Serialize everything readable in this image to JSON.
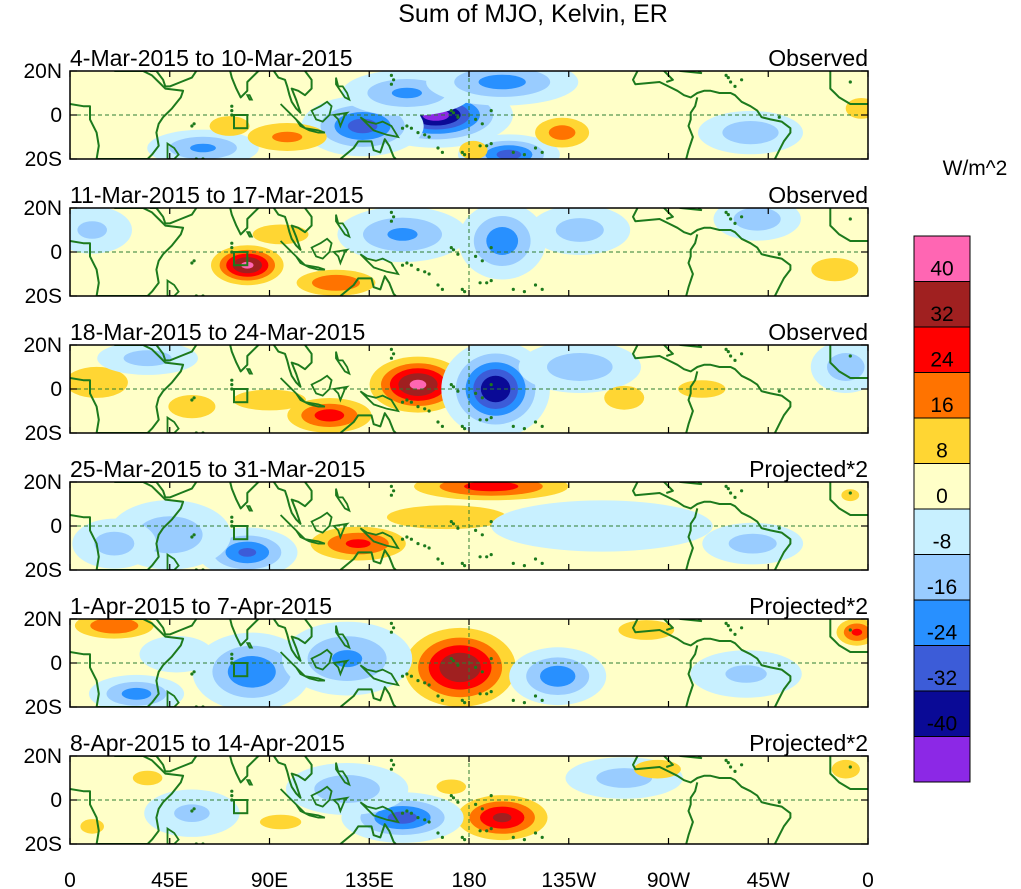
{
  "chart_data": {
    "type": "heatmap",
    "title": "Sum of MJO, Kelvin, ER",
    "units": "W/m^2",
    "x_ticks": [
      "0",
      "45E",
      "90E",
      "135E",
      "180",
      "135W",
      "90W",
      "45W",
      "0"
    ],
    "y_ticks": [
      "20N",
      "0",
      "20S"
    ],
    "colorbar": {
      "labels": [
        "40",
        "32",
        "24",
        "16",
        "8",
        "0",
        "-8",
        "-16",
        "-24",
        "-32",
        "-40"
      ],
      "colors": [
        "#ff66b3",
        "#a02020",
        "#ff0000",
        "#ff7300",
        "#ffd633",
        "#ffffc8",
        "#c8f0ff",
        "#99ccff",
        "#2890ff",
        "#3c5cd8",
        "#0a0a96",
        "#8c28e6"
      ]
    },
    "panels": [
      {
        "period": "4-Mar-2015 to 10-Mar-2015",
        "type_label": "Observed",
        "anomalies": [
          {
            "lon": 165,
            "lat": 0,
            "sx": 14,
            "sy": 6,
            "v": -44
          },
          {
            "lon": 132,
            "lat": -5,
            "sx": 12,
            "sy": 6,
            "v": -28
          },
          {
            "lon": 152,
            "lat": 10,
            "sx": 14,
            "sy": 5,
            "v": -18
          },
          {
            "lon": 195,
            "lat": 15,
            "sx": 16,
            "sy": 5,
            "v": -20
          },
          {
            "lon": 198,
            "lat": -18,
            "sx": 10,
            "sy": 4,
            "v": -28
          },
          {
            "lon": 60,
            "lat": -15,
            "sx": 12,
            "sy": 4,
            "v": -18
          },
          {
            "lon": 98,
            "lat": -10,
            "sx": 14,
            "sy": 5,
            "v": 18
          },
          {
            "lon": 72,
            "lat": -5,
            "sx": 10,
            "sy": 5,
            "v": 12
          },
          {
            "lon": 222,
            "lat": -8,
            "sx": 9,
            "sy": 5,
            "v": 20
          },
          {
            "lon": 182,
            "lat": -16,
            "sx": 6,
            "sy": 4,
            "v": 14
          },
          {
            "lon": 28,
            "lat": 2,
            "sx": 14,
            "sy": 6,
            "v": 8
          },
          {
            "lon": 307,
            "lat": -8,
            "sx": 12,
            "sy": 5,
            "v": -14
          },
          {
            "lon": 357,
            "lat": 3,
            "sx": 6,
            "sy": 4,
            "v": 16
          },
          {
            "lon": 252,
            "lat": 8,
            "sx": 22,
            "sy": 6,
            "v": 8
          }
        ]
      },
      {
        "period": "11-Mar-2015 to 17-Mar-2015",
        "type_label": "Observed",
        "anomalies": [
          {
            "lon": 80,
            "lat": -6,
            "sx": 9,
            "sy": 5,
            "v": 42
          },
          {
            "lon": 95,
            "lat": 8,
            "sx": 14,
            "sy": 5,
            "v": 12
          },
          {
            "lon": 120,
            "lat": -14,
            "sx": 12,
            "sy": 4,
            "v": 24
          },
          {
            "lon": 50,
            "lat": 0,
            "sx": 14,
            "sy": 6,
            "v": 8
          },
          {
            "lon": 150,
            "lat": 8,
            "sx": 14,
            "sy": 6,
            "v": -18
          },
          {
            "lon": 195,
            "lat": 5,
            "sx": 9,
            "sy": 8,
            "v": -22
          },
          {
            "lon": 230,
            "lat": 10,
            "sx": 12,
            "sy": 6,
            "v": -12
          },
          {
            "lon": 310,
            "lat": 15,
            "sx": 10,
            "sy": 5,
            "v": -14
          },
          {
            "lon": 345,
            "lat": -8,
            "sx": 10,
            "sy": 5,
            "v": 14
          },
          {
            "lon": 10,
            "lat": 10,
            "sx": 10,
            "sy": 6,
            "v": -10
          },
          {
            "lon": 268,
            "lat": -5,
            "sx": 14,
            "sy": 5,
            "v": 8
          }
        ]
      },
      {
        "period": "18-Mar-2015 to 24-Mar-2015",
        "type_label": "Observed",
        "anomalies": [
          {
            "lon": 157,
            "lat": 2,
            "sx": 12,
            "sy": 7,
            "v": 42
          },
          {
            "lon": 117,
            "lat": -12,
            "sx": 12,
            "sy": 5,
            "v": 28
          },
          {
            "lon": 90,
            "lat": -5,
            "sx": 14,
            "sy": 4,
            "v": 16
          },
          {
            "lon": 55,
            "lat": -8,
            "sx": 10,
            "sy": 5,
            "v": 14
          },
          {
            "lon": 12,
            "lat": 3,
            "sx": 12,
            "sy": 6,
            "v": 16
          },
          {
            "lon": 192,
            "lat": 0,
            "sx": 10,
            "sy": 9,
            "v": -40
          },
          {
            "lon": 230,
            "lat": 10,
            "sx": 14,
            "sy": 6,
            "v": -14
          },
          {
            "lon": 35,
            "lat": 14,
            "sx": 12,
            "sy": 4,
            "v": -12
          },
          {
            "lon": 285,
            "lat": 0,
            "sx": 16,
            "sy": 6,
            "v": 10
          },
          {
            "lon": 250,
            "lat": -4,
            "sx": 10,
            "sy": 6,
            "v": 12
          },
          {
            "lon": 350,
            "lat": 10,
            "sx": 8,
            "sy": 6,
            "v": -14
          }
        ]
      },
      {
        "period": "25-Mar-2015 to 31-Mar-2015",
        "type_label": "Projected*2",
        "anomalies": [
          {
            "lon": 190,
            "lat": 18,
            "sx": 22,
            "sy": 4,
            "v": 28
          },
          {
            "lon": 130,
            "lat": -8,
            "sx": 14,
            "sy": 5,
            "v": 26
          },
          {
            "lon": 170,
            "lat": 4,
            "sx": 30,
            "sy": 6,
            "v": 12
          },
          {
            "lon": 40,
            "lat": 10,
            "sx": 22,
            "sy": 4,
            "v": 8
          },
          {
            "lon": 80,
            "lat": -12,
            "sx": 10,
            "sy": 5,
            "v": -26
          },
          {
            "lon": 45,
            "lat": -4,
            "sx": 14,
            "sy": 8,
            "v": -14
          },
          {
            "lon": 20,
            "lat": -8,
            "sx": 10,
            "sy": 6,
            "v": -12
          },
          {
            "lon": 240,
            "lat": 0,
            "sx": 30,
            "sy": 7,
            "v": -8
          },
          {
            "lon": 308,
            "lat": -8,
            "sx": 12,
            "sy": 5,
            "v": -12
          },
          {
            "lon": 352,
            "lat": 14,
            "sx": 6,
            "sy": 4,
            "v": 10
          }
        ]
      },
      {
        "period": "1-Apr-2015 to 7-Apr-2015",
        "type_label": "Projected*2",
        "anomalies": [
          {
            "lon": 176,
            "lat": -2,
            "sx": 14,
            "sy": 10,
            "v": 40
          },
          {
            "lon": 20,
            "lat": 17,
            "sx": 12,
            "sy": 4,
            "v": 24
          },
          {
            "lon": 260,
            "lat": 15,
            "sx": 14,
            "sy": 5,
            "v": 12
          },
          {
            "lon": 355,
            "lat": 14,
            "sx": 6,
            "sy": 4,
            "v": 26
          },
          {
            "lon": 82,
            "lat": -4,
            "sx": 12,
            "sy": 8,
            "v": -24
          },
          {
            "lon": 30,
            "lat": -14,
            "sx": 10,
            "sy": 4,
            "v": -20
          },
          {
            "lon": 125,
            "lat": 2,
            "sx": 14,
            "sy": 8,
            "v": -18
          },
          {
            "lon": 220,
            "lat": -6,
            "sx": 10,
            "sy": 6,
            "v": -22
          },
          {
            "lon": 305,
            "lat": -5,
            "sx": 14,
            "sy": 6,
            "v": -10
          },
          {
            "lon": 48,
            "lat": 4,
            "sx": 10,
            "sy": 5,
            "v": -8
          }
        ]
      },
      {
        "period": "8-Apr-2015 to 14-Apr-2015",
        "type_label": "Projected*2",
        "anomalies": [
          {
            "lon": 195,
            "lat": -8,
            "sx": 12,
            "sy": 6,
            "v": 34
          },
          {
            "lon": 172,
            "lat": 6,
            "sx": 10,
            "sy": 5,
            "v": 10
          },
          {
            "lon": 150,
            "lat": -8,
            "sx": 12,
            "sy": 5,
            "v": -28
          },
          {
            "lon": 125,
            "lat": 5,
            "sx": 14,
            "sy": 6,
            "v": -14
          },
          {
            "lon": 35,
            "lat": 10,
            "sx": 10,
            "sy": 5,
            "v": 10
          },
          {
            "lon": 10,
            "lat": -12,
            "sx": 8,
            "sy": 5,
            "v": 10
          },
          {
            "lon": 95,
            "lat": -10,
            "sx": 14,
            "sy": 5,
            "v": 10
          },
          {
            "lon": 55,
            "lat": -6,
            "sx": 12,
            "sy": 6,
            "v": -10
          },
          {
            "lon": 250,
            "lat": 10,
            "sx": 14,
            "sy": 5,
            "v": -12
          },
          {
            "lon": 265,
            "lat": 14,
            "sx": 10,
            "sy": 4,
            "v": 14
          },
          {
            "lon": 350,
            "lat": 14,
            "sx": 6,
            "sy": 4,
            "v": 14
          },
          {
            "lon": 318,
            "lat": -8,
            "sx": 10,
            "sy": 5,
            "v": 8
          }
        ]
      }
    ]
  }
}
